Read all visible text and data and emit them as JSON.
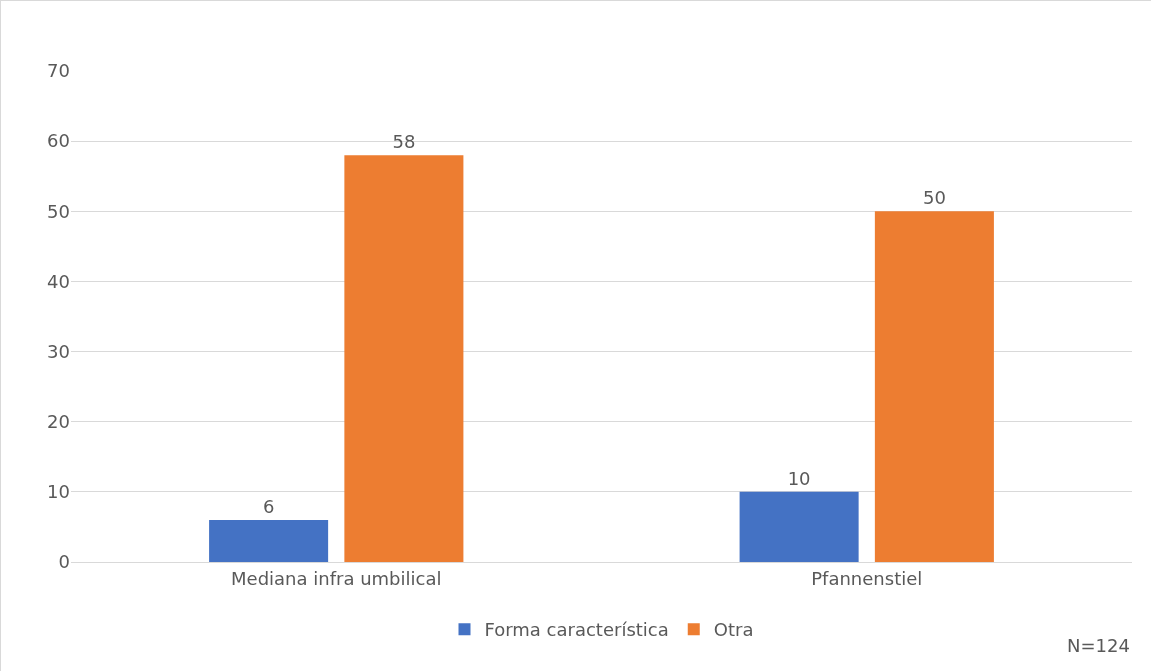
{
  "chart_data": {
    "type": "bar",
    "categories": [
      "Mediana infra umbilical",
      "Pfannenstiel"
    ],
    "series": [
      {
        "name": "Forma característica",
        "color": "#4472c4",
        "values": [
          6,
          10
        ]
      },
      {
        "name": "Otra",
        "color": "#ed7d31",
        "values": [
          58,
          50
        ]
      }
    ],
    "ylim": [
      0,
      70
    ],
    "yticks": [
      0,
      10,
      20,
      30,
      40,
      50,
      60,
      70
    ],
    "grid": "y",
    "legend": "bottom",
    "data_labels": true,
    "annotations": [
      "N=124"
    ]
  }
}
